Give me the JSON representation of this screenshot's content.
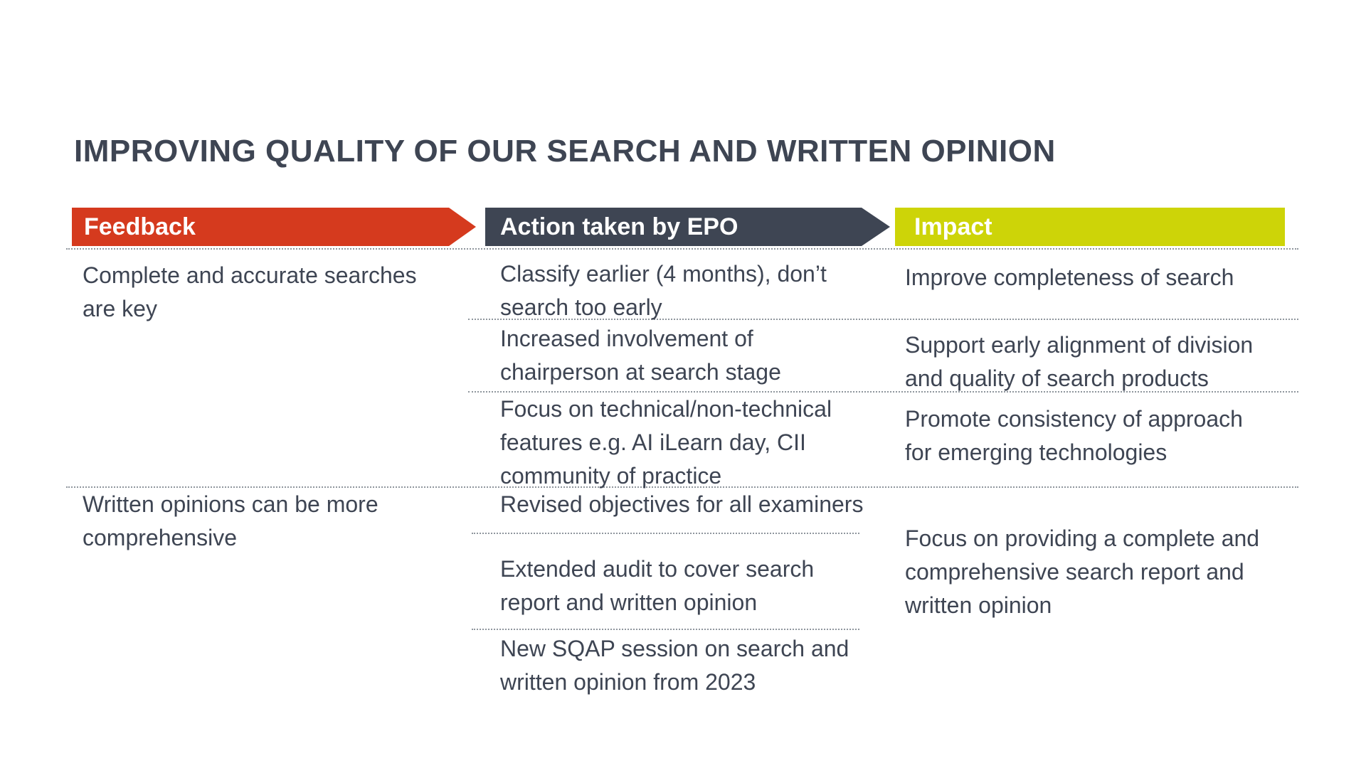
{
  "title": "IMPROVING QUALITY OF OUR SEARCH AND WRITTEN OPINION",
  "colors": {
    "feedback_header": "#D53A1E",
    "action_header": "#3E4553",
    "impact_header": "#CDD408",
    "body_text": "#3E4553",
    "separator": "#8F969D",
    "background": "#FFFFFF"
  },
  "columns": {
    "feedback": {
      "header": "Feedback",
      "items": [
        {
          "text": "Complete and accurate searches\nare key"
        },
        {
          "text": "Written opinions can be more\ncomprehensive"
        }
      ]
    },
    "action": {
      "header": "Action taken by EPO",
      "items": [
        {
          "text": "Classify earlier (4 months), don’t\nsearch too early"
        },
        {
          "text": "Increased involvement of\nchairperson at search stage"
        },
        {
          "text": "Focus on technical/non-technical\nfeatures e.g. AI iLearn day, CII\ncommunity of practice"
        },
        {
          "text": "Revised objectives for all examiners"
        },
        {
          "text": "Extended audit to cover search\nreport and written opinion"
        },
        {
          "text": "New SQAP session on search and\nwritten opinion from 2023"
        }
      ]
    },
    "impact": {
      "header": "Impact",
      "items": [
        {
          "text": "Improve completeness of search"
        },
        {
          "text": "Support early alignment of division\nand quality of search products"
        },
        {
          "text": "Promote consistency of approach\nfor emerging technologies"
        },
        {
          "text": "Focus on providing a complete and\ncomprehensive search report and\nwritten opinion"
        }
      ]
    }
  }
}
